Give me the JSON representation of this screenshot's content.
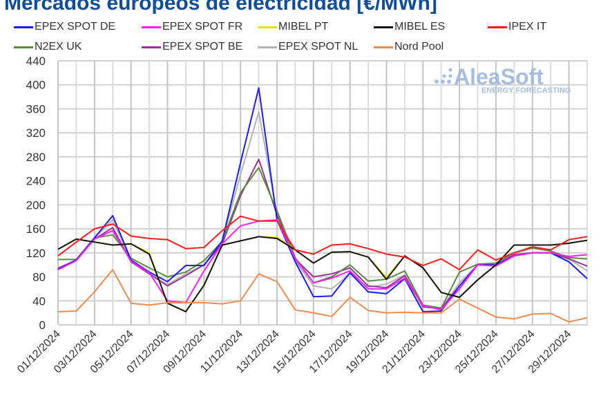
{
  "chart_data": {
    "type": "line",
    "title": "Mercados europeos de electricidad [€/MWh]",
    "xlabel": "",
    "ylabel": "",
    "ylim": [
      0,
      440
    ],
    "yticks": [
      0,
      40,
      80,
      120,
      160,
      200,
      240,
      280,
      320,
      360,
      400,
      440
    ],
    "grid": true,
    "legend_placement": "top",
    "x": [
      "01/12/2024",
      "02/12/2024",
      "03/12/2024",
      "04/12/2024",
      "05/12/2024",
      "06/12/2024",
      "07/12/2024",
      "08/12/2024",
      "09/12/2024",
      "10/12/2024",
      "11/12/2024",
      "12/12/2024",
      "13/12/2024",
      "14/12/2024",
      "15/12/2024",
      "16/12/2024",
      "17/12/2024",
      "18/12/2024",
      "19/12/2024",
      "20/12/2024",
      "21/12/2024",
      "22/12/2024",
      "23/12/2024",
      "24/12/2024",
      "25/12/2024",
      "26/12/2024",
      "27/12/2024",
      "28/12/2024",
      "29/12/2024",
      "30/12/2024"
    ],
    "xtick_labels": [
      "01/12/2024",
      "03/12/2024",
      "05/12/2024",
      "07/12/2024",
      "09/12/2024",
      "11/12/2024",
      "13/12/2024",
      "15/12/2024",
      "17/12/2024",
      "19/12/2024",
      "21/12/2024",
      "23/12/2024",
      "25/12/2024",
      "27/12/2024",
      "29/12/2024"
    ],
    "series": [
      {
        "name": "EPEX SPOT DE",
        "color": "#1a1aff",
        "values": [
          93,
          108,
          145,
          182,
          108,
          88,
          72,
          99,
          99,
          140,
          270,
          395,
          175,
          105,
          47,
          48,
          87,
          55,
          52,
          77,
          22,
          23,
          65,
          100,
          100,
          115,
          120,
          120,
          105,
          77
        ]
      },
      {
        "name": "EPEX SPOT FR",
        "color": "#ff1aff",
        "values": [
          92,
          107,
          143,
          157,
          106,
          87,
          40,
          37,
          90,
          135,
          165,
          173,
          175,
          110,
          70,
          78,
          90,
          60,
          60,
          78,
          32,
          25,
          60,
          100,
          98,
          115,
          120,
          120,
          114,
          117
        ]
      },
      {
        "name": "MIBEL PT",
        "color": "#e6e600",
        "values": [
          126,
          143,
          138,
          133,
          135,
          120,
          36,
          22,
          66,
          133,
          140,
          147,
          146,
          125,
          103,
          121,
          122,
          113,
          79,
          115,
          95,
          54,
          46,
          75,
          100,
          133,
          133,
          133,
          136,
          141
        ]
      },
      {
        "name": "MIBEL ES",
        "color": "#111111",
        "values": [
          126,
          143,
          138,
          133,
          135,
          118,
          36,
          22,
          66,
          133,
          140,
          147,
          144,
          125,
          103,
          121,
          122,
          113,
          76,
          115,
          95,
          54,
          46,
          75,
          100,
          133,
          133,
          133,
          136,
          141
        ]
      },
      {
        "name": "IPEX IT",
        "color": "#ff1a1a",
        "values": [
          115,
          138,
          160,
          168,
          148,
          144,
          142,
          127,
          129,
          157,
          181,
          173,
          173,
          125,
          118,
          133,
          135,
          127,
          118,
          113,
          99,
          110,
          92,
          125,
          108,
          120,
          130,
          125,
          142,
          147
        ]
      },
      {
        "name": "N2EX UK",
        "color": "#5a8a3c",
        "values": [
          109,
          109,
          145,
          150,
          111,
          95,
          80,
          88,
          107,
          139,
          220,
          262,
          190,
          112,
          70,
          80,
          100,
          73,
          76,
          90,
          33,
          28,
          88,
          101,
          103,
          120,
          128,
          123,
          112,
          110
        ]
      },
      {
        "name": "EPEX SPOT BE",
        "color": "#993399",
        "values": [
          94,
          108,
          143,
          162,
          105,
          85,
          65,
          82,
          100,
          135,
          215,
          276,
          183,
          110,
          80,
          85,
          95,
          65,
          62,
          82,
          30,
          27,
          65,
          100,
          100,
          117,
          120,
          120,
          110,
          98
        ]
      },
      {
        "name": "EPEX SPOT NL",
        "color": "#b3b3b3",
        "values": [
          95,
          107,
          145,
          175,
          107,
          85,
          67,
          85,
          100,
          140,
          250,
          355,
          183,
          107,
          65,
          60,
          85,
          63,
          68,
          83,
          32,
          28,
          70,
          100,
          100,
          117,
          120,
          120,
          110,
          90
        ]
      },
      {
        "name": "Nord Pool",
        "color": "#f08a4b",
        "values": [
          22,
          23,
          55,
          92,
          36,
          33,
          37,
          37,
          37,
          35,
          40,
          85,
          72,
          25,
          20,
          14,
          46,
          24,
          20,
          21,
          20,
          20,
          43,
          28,
          13,
          10,
          18,
          19,
          5,
          12
        ]
      }
    ]
  },
  "logo": {
    "name": "AleaSoft",
    "tagline": "ENERGY FORECASTING",
    "color": "#9db8dc"
  }
}
